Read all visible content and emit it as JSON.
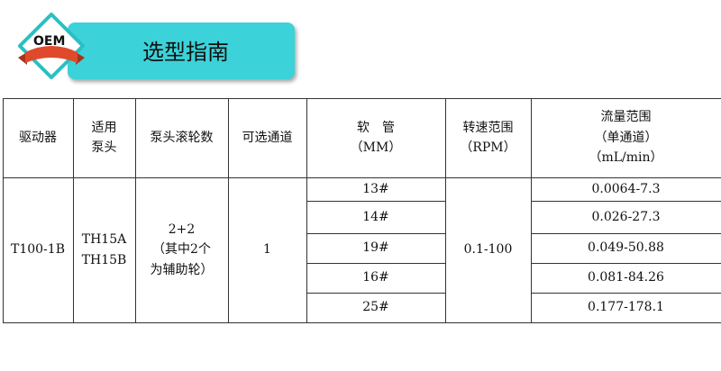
{
  "header": {
    "badge": "OEM",
    "title": "选型指南",
    "colors": {
      "banner": "#3cd2d9",
      "ribbon": "#e04a2c",
      "badge_border": "#2bbfc2"
    }
  },
  "table": {
    "headers": [
      "驱动器",
      "适用\n泵头",
      "泵头滚轮数",
      "可选通道",
      "软　管\n（MM）",
      "转速范围\n（RPM）",
      "流量范围\n（单通道）\n（mL/min）"
    ],
    "driver": "T100-1B",
    "pump_heads": "TH15A\nTH15B",
    "rollers": "2+2\n（其中2个\n为辅助轮）",
    "channels": "1",
    "speed": "0.1-100",
    "rows": [
      {
        "tube": "13#",
        "flow": "0.0064-7.3"
      },
      {
        "tube": "14#",
        "flow": "0.026-27.3"
      },
      {
        "tube": "19#",
        "flow": "0.049-50.88"
      },
      {
        "tube": "16#",
        "flow": "0.081-84.26"
      },
      {
        "tube": "25#",
        "flow": "0.177-178.1"
      }
    ]
  }
}
